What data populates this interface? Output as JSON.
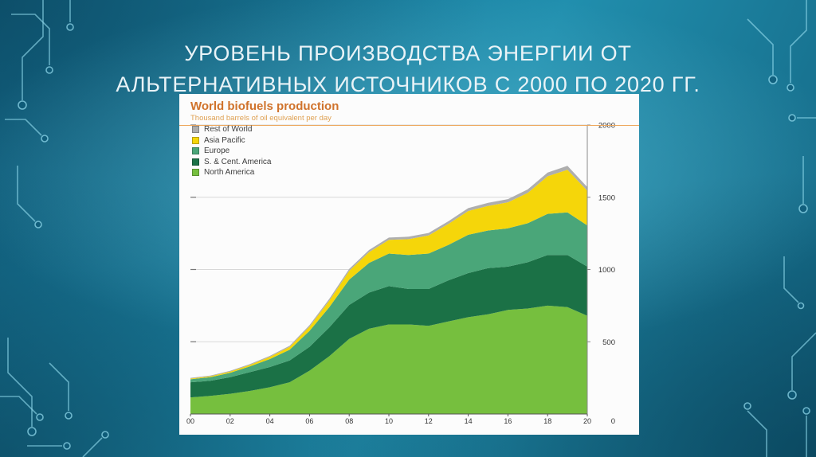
{
  "slide": {
    "title_lines": {
      "0": "УРОВЕНЬ ПРОИЗВОДСТВА ЭНЕРГИИ ОТ",
      "1": "АЛЬТЕРНАТИВНЫХ ИСТОЧНИКОВ С 2000 ПО 2020 ГГ."
    }
  },
  "chart_data": {
    "type": "area",
    "stacked": true,
    "title": "World biofuels production",
    "subtitle": "Thousand barrels of oil equivalent per day",
    "x": [
      2000,
      2001,
      2002,
      2003,
      2004,
      2005,
      2006,
      2007,
      2008,
      2009,
      2010,
      2011,
      2012,
      2013,
      2014,
      2015,
      2016,
      2017,
      2018,
      2019,
      2020
    ],
    "x_ticks": [
      2000,
      2002,
      2004,
      2006,
      2008,
      2010,
      2012,
      2014,
      2016,
      2018,
      2020
    ],
    "x_tick_labels": [
      "00",
      "02",
      "04",
      "06",
      "08",
      "10",
      "12",
      "14",
      "16",
      "18",
      "20"
    ],
    "ylim": [
      0,
      2000
    ],
    "y_ticks": [
      500,
      1000,
      1500,
      2000
    ],
    "y_zero_label": "0",
    "grid": true,
    "legend_position": "top-left",
    "legend_order": [
      "Rest of World",
      "Asia Pacific",
      "Europe",
      "S. & Cent. America",
      "North America"
    ],
    "series": [
      {
        "name": "North America",
        "color": "#76bf3e",
        "values": [
          115,
          125,
          140,
          160,
          185,
          220,
          300,
          400,
          520,
          590,
          620,
          620,
          610,
          640,
          670,
          690,
          720,
          730,
          750,
          740,
          680
        ]
      },
      {
        "name": "S. & Cent. America",
        "color": "#1b7146",
        "values": [
          105,
          105,
          115,
          130,
          140,
          150,
          165,
          200,
          235,
          250,
          265,
          245,
          255,
          285,
          305,
          320,
          300,
          320,
          350,
          360,
          340
        ]
      },
      {
        "name": "Europe",
        "color": "#4aa679",
        "values": [
          20,
          25,
          30,
          40,
          55,
          75,
          110,
          140,
          175,
          205,
          225,
          235,
          245,
          245,
          265,
          260,
          265,
          270,
          285,
          295,
          285
        ]
      },
      {
        "name": "Asia Pacific",
        "color": "#f5d60a",
        "values": [
          5,
          6,
          8,
          10,
          15,
          20,
          30,
          45,
          60,
          75,
          95,
          110,
          125,
          145,
          165,
          170,
          180,
          210,
          260,
          295,
          240
        ]
      },
      {
        "name": "Rest of World",
        "color": "#aeaeae",
        "values": [
          5,
          5,
          6,
          6,
          7,
          8,
          10,
          12,
          14,
          15,
          16,
          17,
          18,
          19,
          20,
          21,
          22,
          24,
          26,
          28,
          25
        ]
      }
    ],
    "colors": {
      "chart_title": "#d0732c",
      "chart_subtitle": "#dfa153",
      "axis": "#8a8a8a",
      "grid": "#d8d8d8",
      "tick_text": "#333333"
    }
  }
}
